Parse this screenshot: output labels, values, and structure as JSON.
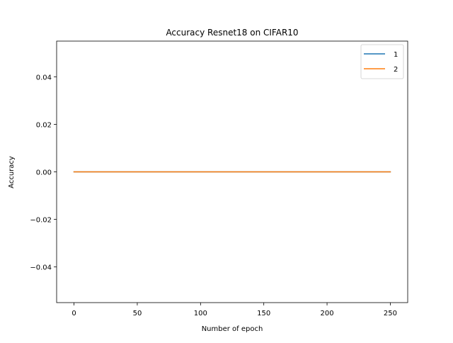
{
  "chart_data": {
    "type": "line",
    "title": "Accuracy Resnet18 on CIFAR10",
    "xlabel": "Number of epoch",
    "ylabel": "Accuracy",
    "xlim": [
      -13.75,
      263.75
    ],
    "ylim": [
      -0.055,
      0.055
    ],
    "xticks": [
      0,
      50,
      100,
      150,
      200,
      250
    ],
    "yticks": [
      -0.04,
      -0.02,
      0.0,
      0.02,
      0.04
    ],
    "ytick_labels": [
      "−0.04",
      "−0.02",
      "0.00",
      "0.02",
      "0.04"
    ],
    "grid": false,
    "legend_position": "top-right",
    "series": [
      {
        "name": "1",
        "color": "#1f77b4",
        "x": [
          0,
          250
        ],
        "y": [
          0.0,
          0.0
        ]
      },
      {
        "name": "2",
        "color": "#ff7f0e",
        "x": [
          0,
          250
        ],
        "y": [
          0.0,
          0.0
        ]
      }
    ]
  }
}
